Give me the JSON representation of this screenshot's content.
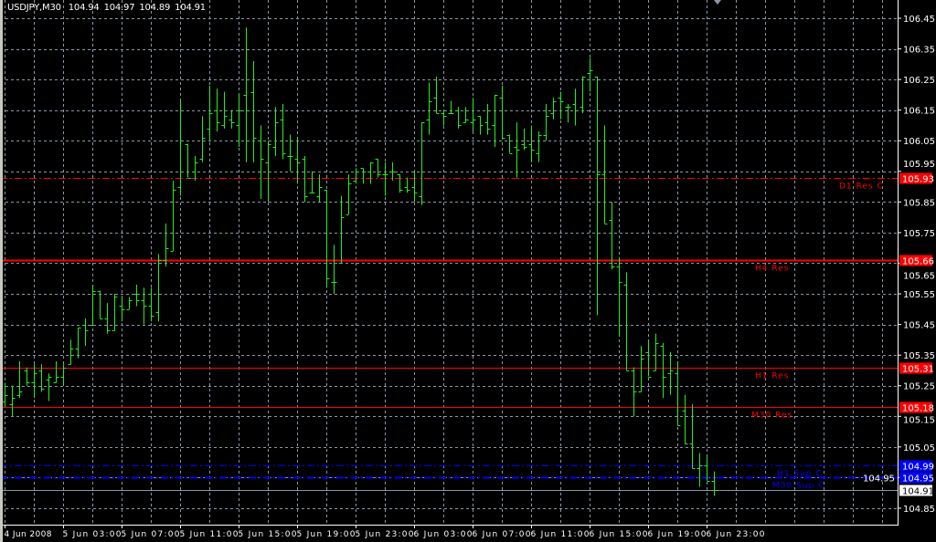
{
  "header": {
    "symbol": "USDJPY,M30",
    "open": "104.94",
    "high": "104.97",
    "low": "104.89",
    "close": "104.91"
  },
  "colors": {
    "background": "#000000",
    "grid": "#8a96a8",
    "bars": "#22ee22",
    "resistance": "#ff0000",
    "support": "#0000ff",
    "bid_line": "#8a96a8"
  },
  "price_axis": [
    "106.45",
    "106.35",
    "106.25",
    "106.15",
    "106.05",
    "105.95",
    "105.85",
    "105.75",
    "105.65",
    "105.55",
    "105.45",
    "105.35",
    "105.25",
    "105.15",
    "105.05",
    "104.95",
    "104.85"
  ],
  "time_axis": [
    "4 Jun 2008",
    "5 Jun 03:00",
    "5 Jun 07:00",
    "5 Jun 11:00",
    "5 Jun 15:00",
    "5 Jun 19:00",
    "5 Jun 23:00",
    "6 Jun 03:00",
    "6 Jun 07:00",
    "6 Jun 11:00",
    "6 Jun 15:00",
    "6 Jun 19:00",
    "6 Jun 23:00"
  ],
  "levels": [
    {
      "label": "D1 Res C",
      "price": "105.93",
      "color": "#ff0000",
      "style": "dashdot"
    },
    {
      "label": "H4 Res",
      "price": "105.66",
      "color": "#ff0000",
      "style": "solid-thick"
    },
    {
      "label": "H1 Res",
      "price": "105.31",
      "color": "#ff0000",
      "style": "solid"
    },
    {
      "label": "M30 Res",
      "price": "105.18",
      "color": "#ff0000",
      "style": "solid"
    },
    {
      "label": "H1 Sup C",
      "price": "104.99",
      "color": "#0000ff",
      "style": "dashdot"
    },
    {
      "label": "M30 Sup C",
      "price": "104.95",
      "color": "#0000ff",
      "style": "dashdot-thick"
    }
  ],
  "bid": "104.91",
  "chart_data": {
    "type": "ohlc",
    "symbol": "USDJPY",
    "timeframe": "M30",
    "ylim": [
      104.85,
      106.45
    ],
    "ohlc": [
      [
        105.2,
        105.26,
        105.18,
        105.22
      ],
      [
        105.19,
        105.25,
        105.15,
        105.21
      ],
      [
        105.22,
        105.33,
        105.21,
        105.23
      ],
      [
        105.3,
        105.31,
        105.25,
        105.26
      ],
      [
        105.26,
        105.32,
        105.21,
        105.29
      ],
      [
        105.3,
        105.32,
        105.23,
        105.24
      ],
      [
        105.27,
        105.29,
        105.2,
        105.28
      ],
      [
        105.26,
        105.33,
        105.26,
        105.28
      ],
      [
        105.28,
        105.32,
        105.25,
        105.31
      ],
      [
        105.32,
        105.4,
        105.32,
        105.37
      ],
      [
        105.37,
        105.44,
        105.34,
        105.44
      ],
      [
        105.45,
        105.47,
        105.38,
        105.43
      ],
      [
        105.45,
        105.58,
        105.45,
        105.56
      ],
      [
        105.56,
        105.56,
        105.47,
        105.47
      ],
      [
        105.47,
        105.52,
        105.42,
        105.43
      ],
      [
        105.43,
        105.55,
        105.43,
        105.54
      ],
      [
        105.51,
        105.54,
        105.46,
        105.5
      ],
      [
        105.5,
        105.54,
        105.5,
        105.53
      ],
      [
        105.55,
        105.58,
        105.51,
        105.53
      ],
      [
        105.53,
        105.57,
        105.45,
        105.51
      ],
      [
        105.51,
        105.57,
        105.46,
        105.48
      ],
      [
        105.49,
        105.68,
        105.46,
        105.66
      ],
      [
        105.66,
        105.78,
        105.64,
        105.7
      ],
      [
        105.69,
        105.92,
        105.69,
        105.89
      ],
      [
        105.9,
        106.18,
        105.87,
        106.05
      ],
      [
        106.04,
        106.04,
        105.93,
        105.93
      ],
      [
        105.95,
        106.0,
        105.92,
        105.98
      ],
      [
        105.99,
        106.13,
        105.98,
        106.06
      ],
      [
        106.09,
        106.23,
        106.05,
        106.14
      ],
      [
        106.15,
        106.22,
        106.08,
        106.11
      ],
      [
        106.1,
        106.21,
        106.09,
        106.13
      ],
      [
        106.12,
        106.15,
        106.09,
        106.11
      ],
      [
        106.1,
        106.2,
        106.03,
        106.15
      ],
      [
        106.2,
        106.42,
        105.98,
        106.15
      ],
      [
        106.21,
        106.31,
        105.98,
        106.06
      ],
      [
        106.05,
        106.1,
        105.86,
        105.99
      ],
      [
        105.98,
        106.05,
        105.85,
        106.04
      ],
      [
        106.03,
        106.16,
        106.0,
        106.11
      ],
      [
        106.12,
        106.17,
        105.99,
        106.01
      ],
      [
        106.0,
        106.07,
        105.95,
        106.0
      ],
      [
        105.99,
        106.06,
        105.91,
        105.98
      ],
      [
        105.99,
        106.0,
        105.85,
        105.87
      ],
      [
        105.88,
        105.95,
        105.88,
        105.88
      ],
      [
        105.87,
        105.94,
        105.85,
        105.9
      ],
      [
        105.89,
        105.89,
        105.57,
        105.6
      ],
      [
        105.59,
        105.71,
        105.55,
        105.59
      ],
      [
        105.65,
        105.87,
        105.65,
        105.8
      ],
      [
        105.81,
        105.94,
        105.81,
        105.91
      ],
      [
        105.92,
        105.96,
        105.91,
        105.95
      ],
      [
        105.96,
        105.96,
        105.91,
        105.95
      ],
      [
        105.95,
        105.98,
        105.91,
        105.98
      ],
      [
        105.99,
        105.99,
        105.93,
        105.94
      ],
      [
        105.94,
        105.98,
        105.87,
        105.94
      ],
      [
        105.95,
        105.98,
        105.92,
        105.95
      ],
      [
        105.94,
        105.94,
        105.88,
        105.89
      ],
      [
        105.9,
        105.93,
        105.88,
        105.89
      ],
      [
        105.9,
        105.95,
        105.85,
        105.88
      ],
      [
        105.87,
        106.11,
        105.84,
        106.11
      ],
      [
        106.12,
        106.24,
        106.07,
        106.18
      ],
      [
        106.19,
        106.26,
        106.14,
        106.14
      ],
      [
        106.14,
        106.15,
        106.1,
        106.13
      ],
      [
        106.14,
        106.18,
        106.14,
        106.14
      ],
      [
        106.15,
        106.16,
        106.09,
        106.1
      ],
      [
        106.11,
        106.16,
        106.11,
        106.12
      ],
      [
        106.11,
        106.19,
        106.08,
        106.12
      ],
      [
        106.13,
        106.13,
        106.07,
        106.1
      ],
      [
        106.11,
        106.17,
        106.07,
        106.09
      ],
      [
        106.1,
        106.2,
        106.03,
        106.2
      ],
      [
        106.19,
        106.23,
        106.06,
        106.06
      ],
      [
        106.07,
        106.07,
        106.01,
        106.01
      ],
      [
        106.03,
        106.11,
        105.93,
        106.02
      ],
      [
        106.04,
        106.09,
        106.02,
        106.03
      ],
      [
        106.04,
        106.1,
        105.98,
        106.02
      ],
      [
        106.01,
        106.08,
        105.98,
        106.07
      ],
      [
        106.07,
        106.17,
        106.05,
        106.13
      ],
      [
        106.14,
        106.19,
        106.12,
        106.18
      ],
      [
        106.19,
        106.21,
        106.12,
        106.18
      ],
      [
        106.16,
        106.17,
        106.11,
        106.16
      ],
      [
        106.17,
        106.22,
        106.1,
        106.15
      ],
      [
        106.16,
        106.26,
        106.14,
        106.26
      ],
      [
        106.27,
        106.32,
        106.21,
        106.28
      ],
      [
        106.26,
        106.26,
        105.48,
        105.94
      ],
      [
        105.94,
        106.1,
        105.78,
        105.78
      ],
      [
        105.79,
        105.85,
        105.63,
        105.64
      ],
      [
        105.64,
        105.67,
        105.41,
        105.59
      ],
      [
        105.58,
        105.62,
        105.3,
        105.3
      ],
      [
        105.3,
        105.31,
        105.15,
        105.23
      ],
      [
        105.23,
        105.38,
        105.23,
        105.34
      ],
      [
        105.36,
        105.4,
        105.28,
        105.28
      ],
      [
        105.3,
        105.42,
        105.3,
        105.39
      ],
      [
        105.38,
        105.39,
        105.21,
        105.28
      ],
      [
        105.29,
        105.36,
        105.22,
        105.3
      ],
      [
        105.29,
        105.33,
        105.12,
        105.12
      ],
      [
        105.17,
        105.22,
        105.06,
        105.06
      ],
      [
        105.06,
        105.19,
        104.98,
        104.98
      ],
      [
        104.98,
        105.03,
        104.92,
        104.99
      ],
      [
        104.99,
        105.02,
        104.94,
        104.94
      ],
      [
        104.94,
        104.97,
        104.89,
        104.91
      ]
    ]
  }
}
